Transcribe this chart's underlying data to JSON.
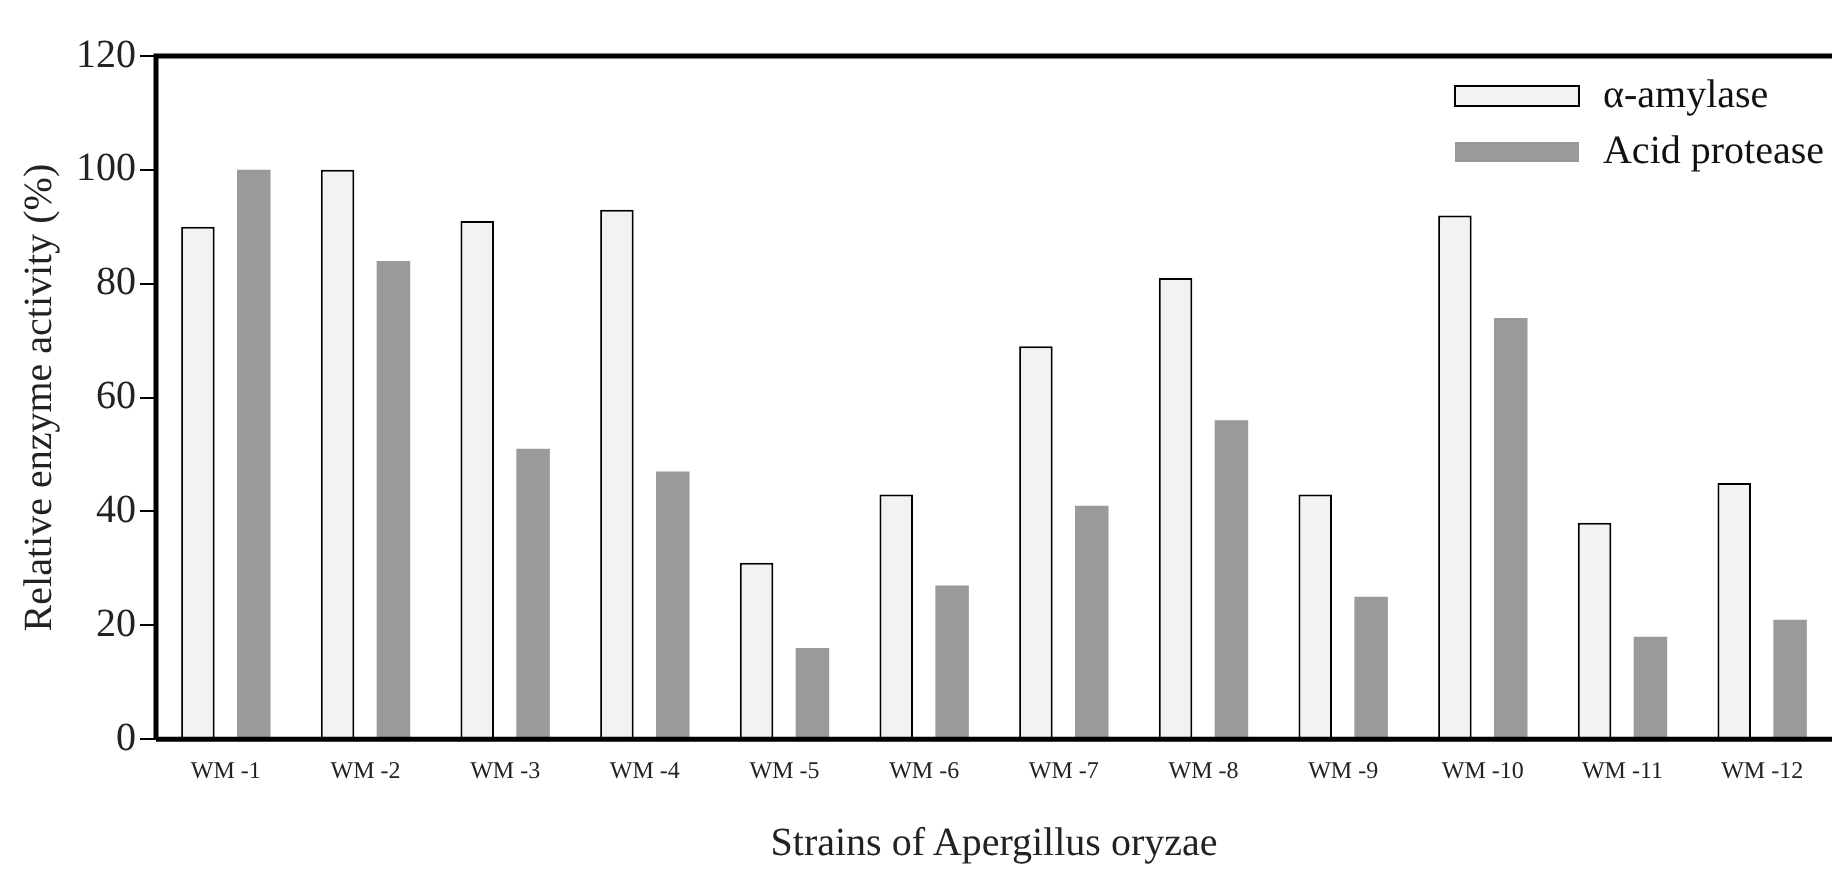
{
  "chart_data": {
    "type": "bar",
    "xlabel": "Strains of Apergillus oryzae",
    "ylabel": "Relative enzyme activity (%)",
    "categories": [
      "WM -1",
      "WM -2",
      "WM -3",
      "WM -4",
      "WM -5",
      "WM -6",
      "WM -7",
      "WM -8",
      "WM -9",
      "WM -10",
      "WM -11",
      "WM -12"
    ],
    "series": [
      {
        "name": "α-amylase",
        "color": "#f2f2f2",
        "values": [
          90,
          100,
          91,
          93,
          31,
          43,
          69,
          81,
          43,
          92,
          38,
          45
        ]
      },
      {
        "name": "Acid protease",
        "color": "#9a9a9a",
        "values": [
          100,
          84,
          51,
          47,
          16,
          27,
          41,
          56,
          25,
          74,
          18,
          21
        ]
      }
    ],
    "ylim": [
      0,
      120
    ],
    "yticks": [
      0,
      20,
      40,
      60,
      80,
      100,
      120
    ],
    "grid": false,
    "legend": "top right"
  }
}
